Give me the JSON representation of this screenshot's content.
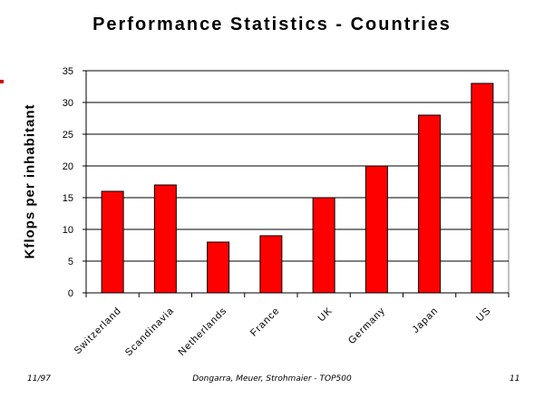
{
  "footer": {
    "date": "11/97",
    "authors": "Dongarra, Meuer, Strohmaier - TOP500",
    "page": "11"
  },
  "colors": {
    "bar": "#ff0000",
    "bar_stroke": "#000000",
    "grid": "#000000"
  },
  "chart_data": {
    "type": "bar",
    "title": "Performance Statistics - Countries",
    "xlabel": "",
    "ylabel": "Kflops per inhabitant",
    "categories": [
      "Switzerland",
      "Scandinavia",
      "Netherlands",
      "France",
      "UK",
      "Germany",
      "Japan",
      "US"
    ],
    "values": [
      16,
      17,
      8,
      9,
      15,
      20,
      28,
      33
    ],
    "ylim": [
      0,
      35
    ],
    "yticks": [
      0,
      5,
      10,
      15,
      20,
      25,
      30,
      35
    ],
    "grid": true,
    "legend": "none"
  }
}
